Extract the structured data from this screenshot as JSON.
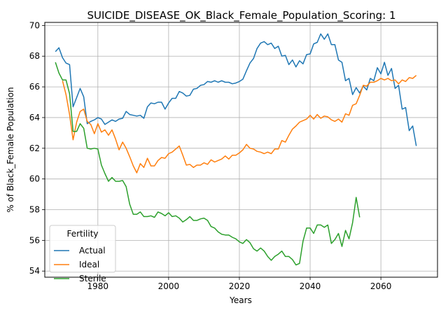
{
  "chart_data": {
    "type": "line",
    "title": "SUICIDE_DISEASE_OK_Black_Female_Population_Scoring: 1",
    "xlabel": "Years",
    "ylabel": "% of Black_Female Population",
    "xlim": [
      1965,
      2076
    ],
    "ylim": [
      53.6,
      70.2
    ],
    "xticks": [
      1980,
      2000,
      2020,
      2040,
      2060
    ],
    "yticks": [
      54,
      56,
      58,
      60,
      62,
      64,
      66,
      68,
      70
    ],
    "grid": true,
    "legend": {
      "title": "Fertility",
      "placement": "lower-left"
    },
    "series": [
      {
        "name": "Actual",
        "color": "#1f77b4",
        "x": [
          1968,
          1969,
          1970,
          1971,
          1972,
          1973,
          1974,
          1975,
          1976,
          1977,
          1978,
          1979,
          1980,
          1981,
          1982,
          1983,
          1984,
          1985,
          1986,
          1987,
          1988,
          1989,
          1990,
          1991,
          1992,
          1993,
          1994,
          1995,
          1996,
          1997,
          1998,
          1999,
          2000,
          2001,
          2002,
          2003,
          2004,
          2005,
          2006,
          2007,
          2008,
          2009,
          2010,
          2011,
          2012,
          2013,
          2014,
          2015,
          2016,
          2017,
          2018,
          2019,
          2020,
          2021,
          2022,
          2023,
          2024,
          2025,
          2026,
          2027,
          2028,
          2029,
          2030,
          2031,
          2032,
          2033,
          2034,
          2035,
          2036,
          2037,
          2038,
          2039,
          2040,
          2041,
          2042,
          2043,
          2044,
          2045,
          2046,
          2047,
          2048,
          2049,
          2050,
          2051,
          2052,
          2053,
          2054,
          2055,
          2056,
          2057,
          2058,
          2059,
          2060,
          2061,
          2062,
          2063,
          2064,
          2065,
          2066,
          2067,
          2068,
          2069,
          2070
        ],
        "values": [
          68.3,
          68.55,
          67.9,
          67.55,
          67.45,
          64.7,
          65.3,
          65.9,
          65.35,
          63.6,
          63.75,
          63.85,
          64.0,
          63.9,
          63.55,
          63.7,
          63.85,
          63.75,
          63.9,
          63.95,
          64.4,
          64.2,
          64.15,
          64.1,
          64.15,
          63.95,
          64.7,
          64.95,
          64.9,
          65.0,
          65.0,
          64.55,
          64.95,
          65.25,
          65.25,
          65.7,
          65.6,
          65.4,
          65.45,
          65.85,
          65.9,
          66.1,
          66.15,
          66.35,
          66.3,
          66.4,
          66.3,
          66.4,
          66.3,
          66.3,
          66.2,
          66.25,
          66.35,
          66.5,
          67.05,
          67.55,
          67.85,
          68.5,
          68.85,
          68.95,
          68.75,
          68.85,
          68.5,
          68.65,
          68.0,
          68.05,
          67.45,
          67.75,
          67.3,
          67.7,
          67.5,
          68.1,
          68.15,
          68.8,
          68.9,
          69.45,
          69.1,
          69.45,
          68.75,
          68.75,
          67.75,
          67.6,
          66.4,
          66.55,
          65.5,
          65.95,
          65.6,
          66.05,
          65.8,
          66.55,
          66.4,
          67.25,
          66.85,
          67.6,
          66.75,
          67.2,
          65.9,
          66.1,
          64.55,
          64.65,
          63.15,
          63.45,
          62.15
        ]
      },
      {
        "name": "Ideal",
        "color": "#ff7f0e",
        "x": [
          1970,
          1971,
          1972,
          1973,
          1974,
          1975,
          1976,
          1977,
          1978,
          1979,
          1980,
          1981,
          1982,
          1983,
          1984,
          1985,
          1986,
          1987,
          1988,
          1989,
          1990,
          1991,
          1992,
          1993,
          1994,
          1995,
          1996,
          1997,
          1998,
          1999,
          2000,
          2001,
          2002,
          2003,
          2004,
          2005,
          2006,
          2007,
          2008,
          2009,
          2010,
          2011,
          2012,
          2013,
          2014,
          2015,
          2016,
          2017,
          2018,
          2019,
          2020,
          2021,
          2022,
          2023,
          2024,
          2025,
          2026,
          2027,
          2028,
          2029,
          2030,
          2031,
          2032,
          2033,
          2034,
          2035,
          2036,
          2037,
          2038,
          2039,
          2040,
          2041,
          2042,
          2043,
          2044,
          2045,
          2046,
          2047,
          2048,
          2049,
          2050,
          2051,
          2052,
          2053,
          2054,
          2055,
          2056,
          2057,
          2058,
          2059,
          2060,
          2061,
          2062,
          2063,
          2064,
          2065,
          2066,
          2067,
          2068,
          2069,
          2070
        ],
        "values": [
          66.4,
          65.5,
          64.2,
          62.55,
          63.7,
          64.4,
          64.55,
          63.75,
          63.55,
          62.95,
          63.6,
          63.05,
          63.2,
          62.85,
          63.2,
          62.6,
          61.9,
          62.4,
          62.0,
          61.45,
          60.85,
          60.4,
          61.0,
          60.75,
          61.35,
          60.85,
          60.85,
          61.2,
          61.4,
          61.35,
          61.65,
          61.75,
          61.95,
          62.15,
          61.55,
          60.9,
          60.95,
          60.75,
          60.9,
          60.9,
          61.05,
          60.95,
          61.25,
          61.1,
          61.2,
          61.3,
          61.5,
          61.3,
          61.55,
          61.55,
          61.7,
          61.9,
          62.25,
          62.0,
          61.95,
          61.8,
          61.75,
          61.65,
          61.75,
          61.65,
          61.95,
          61.95,
          62.5,
          62.4,
          62.85,
          63.25,
          63.45,
          63.7,
          63.8,
          63.9,
          64.15,
          63.9,
          64.2,
          63.95,
          64.1,
          64.05,
          63.85,
          63.75,
          63.9,
          63.7,
          64.25,
          64.15,
          64.8,
          64.9,
          65.45,
          66.1,
          66.05,
          66.3,
          66.3,
          66.4,
          66.55,
          66.45,
          66.55,
          66.4,
          66.45,
          66.2,
          66.45,
          66.35,
          66.6,
          66.55,
          66.75
        ]
      },
      {
        "name": "Sterile",
        "color": "#2ca02c",
        "x": [
          1968,
          1969,
          1970,
          1971,
          1972,
          1973,
          1974,
          1975,
          1976,
          1977,
          1978,
          1979,
          1980,
          1981,
          1982,
          1983,
          1984,
          1985,
          1986,
          1987,
          1988,
          1989,
          1990,
          1991,
          1992,
          1993,
          1994,
          1995,
          1996,
          1997,
          1998,
          1999,
          2000,
          2001,
          2002,
          2003,
          2004,
          2005,
          2006,
          2007,
          2008,
          2009,
          2010,
          2011,
          2012,
          2013,
          2014,
          2015,
          2016,
          2017,
          2018,
          2019,
          2020,
          2021,
          2022,
          2023,
          2024,
          2025,
          2026,
          2027,
          2028,
          2029,
          2030,
          2031,
          2032,
          2033,
          2034,
          2035,
          2036,
          2037,
          2038,
          2039,
          2040,
          2041,
          2042,
          2043,
          2044,
          2045,
          2046,
          2047,
          2048,
          2049,
          2050,
          2051,
          2052,
          2053,
          2054
        ],
        "values": [
          67.6,
          66.9,
          66.45,
          66.45,
          65.55,
          63.1,
          63.1,
          63.6,
          63.3,
          62.0,
          61.95,
          62.0,
          61.95,
          60.9,
          60.35,
          59.85,
          60.1,
          59.85,
          59.85,
          59.9,
          59.5,
          58.35,
          57.7,
          57.7,
          57.85,
          57.55,
          57.55,
          57.6,
          57.5,
          57.85,
          57.75,
          57.6,
          57.8,
          57.55,
          57.6,
          57.45,
          57.2,
          57.35,
          57.55,
          57.3,
          57.3,
          57.4,
          57.45,
          57.3,
          56.9,
          56.8,
          56.55,
          56.4,
          56.35,
          56.35,
          56.2,
          56.1,
          55.9,
          55.8,
          56.05,
          55.85,
          55.45,
          55.3,
          55.5,
          55.3,
          54.95,
          54.7,
          54.95,
          55.1,
          55.3,
          54.95,
          54.95,
          54.75,
          54.4,
          54.5,
          55.95,
          56.8,
          56.8,
          56.45,
          57.0,
          57.0,
          56.85,
          57.0,
          55.8,
          56.05,
          56.45,
          55.6,
          56.65,
          56.1,
          57.15,
          58.8,
          57.5
        ]
      }
    ]
  }
}
